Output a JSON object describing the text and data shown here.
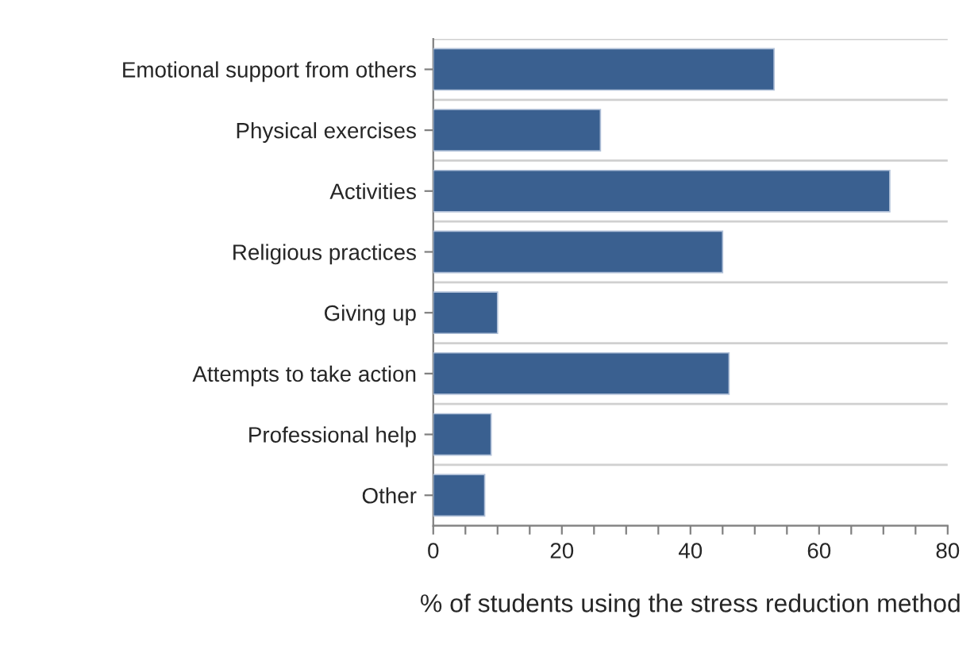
{
  "chart_data": {
    "type": "bar",
    "orientation": "horizontal",
    "categories": [
      "Emotional support from others",
      "Physical exercises",
      "Activities",
      "Religious practices",
      "Giving up",
      "Attempts to take action",
      "Professional help",
      "Other"
    ],
    "values": [
      53,
      26,
      71,
      45,
      10,
      46,
      9,
      8
    ],
    "color": "#3a6090",
    "xlabel": "% of students using the stress reduction method",
    "xlim": [
      0,
      80
    ],
    "xticks": [
      0,
      {
        "value": 5,
        "label": null
      },
      {
        "value": 10,
        "label": null
      },
      {
        "value": 15,
        "label": null
      },
      20,
      {
        "value": 25,
        "label": null
      },
      {
        "value": 30,
        "label": null
      },
      {
        "value": 35,
        "label": null
      },
      40,
      {
        "value": 45,
        "label": null
      },
      {
        "value": 50,
        "label": null
      },
      {
        "value": 55,
        "label": null
      },
      60,
      {
        "value": 65,
        "label": null
      },
      {
        "value": 70,
        "label": null
      },
      {
        "value": 75,
        "label": null
      },
      80
    ],
    "grid": "y",
    "legend": false
  }
}
